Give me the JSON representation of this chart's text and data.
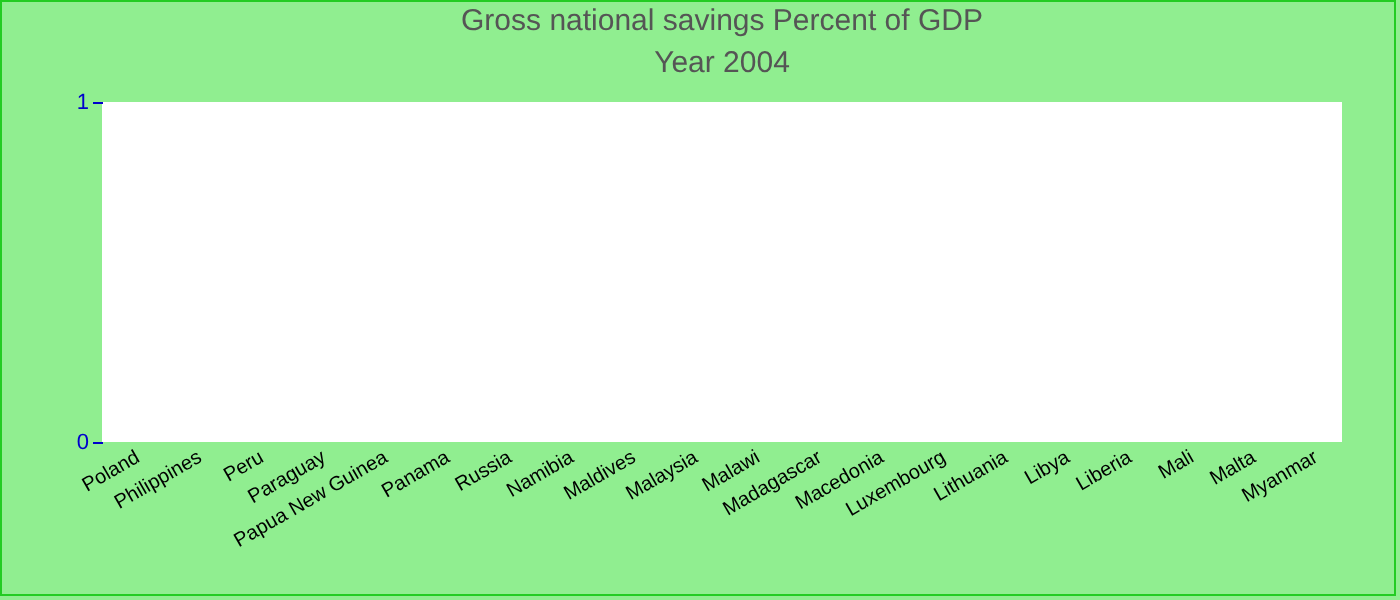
{
  "chart_data": {
    "type": "bar",
    "title": "Gross national savings  Percent of GDP",
    "subtitle": "Year 2004",
    "categories": [
      "Poland",
      "Philippines",
      "Peru",
      "Paraguay",
      "Papua New Guinea",
      "Panama",
      "Russia",
      "Namibia",
      "Maldives",
      "Malaysia",
      "Malawi",
      "Madagascar",
      "Macedonia",
      "Luxembourg",
      "Lithuania",
      "Libya",
      "Liberia",
      "Mali",
      "Malta",
      "Myanmar"
    ],
    "values": [
      null,
      null,
      null,
      null,
      null,
      null,
      null,
      null,
      null,
      null,
      null,
      null,
      null,
      null,
      null,
      null,
      null,
      null,
      null,
      null
    ],
    "ylim": [
      0,
      1
    ],
    "yticks": [
      0,
      1
    ],
    "grid": false
  }
}
